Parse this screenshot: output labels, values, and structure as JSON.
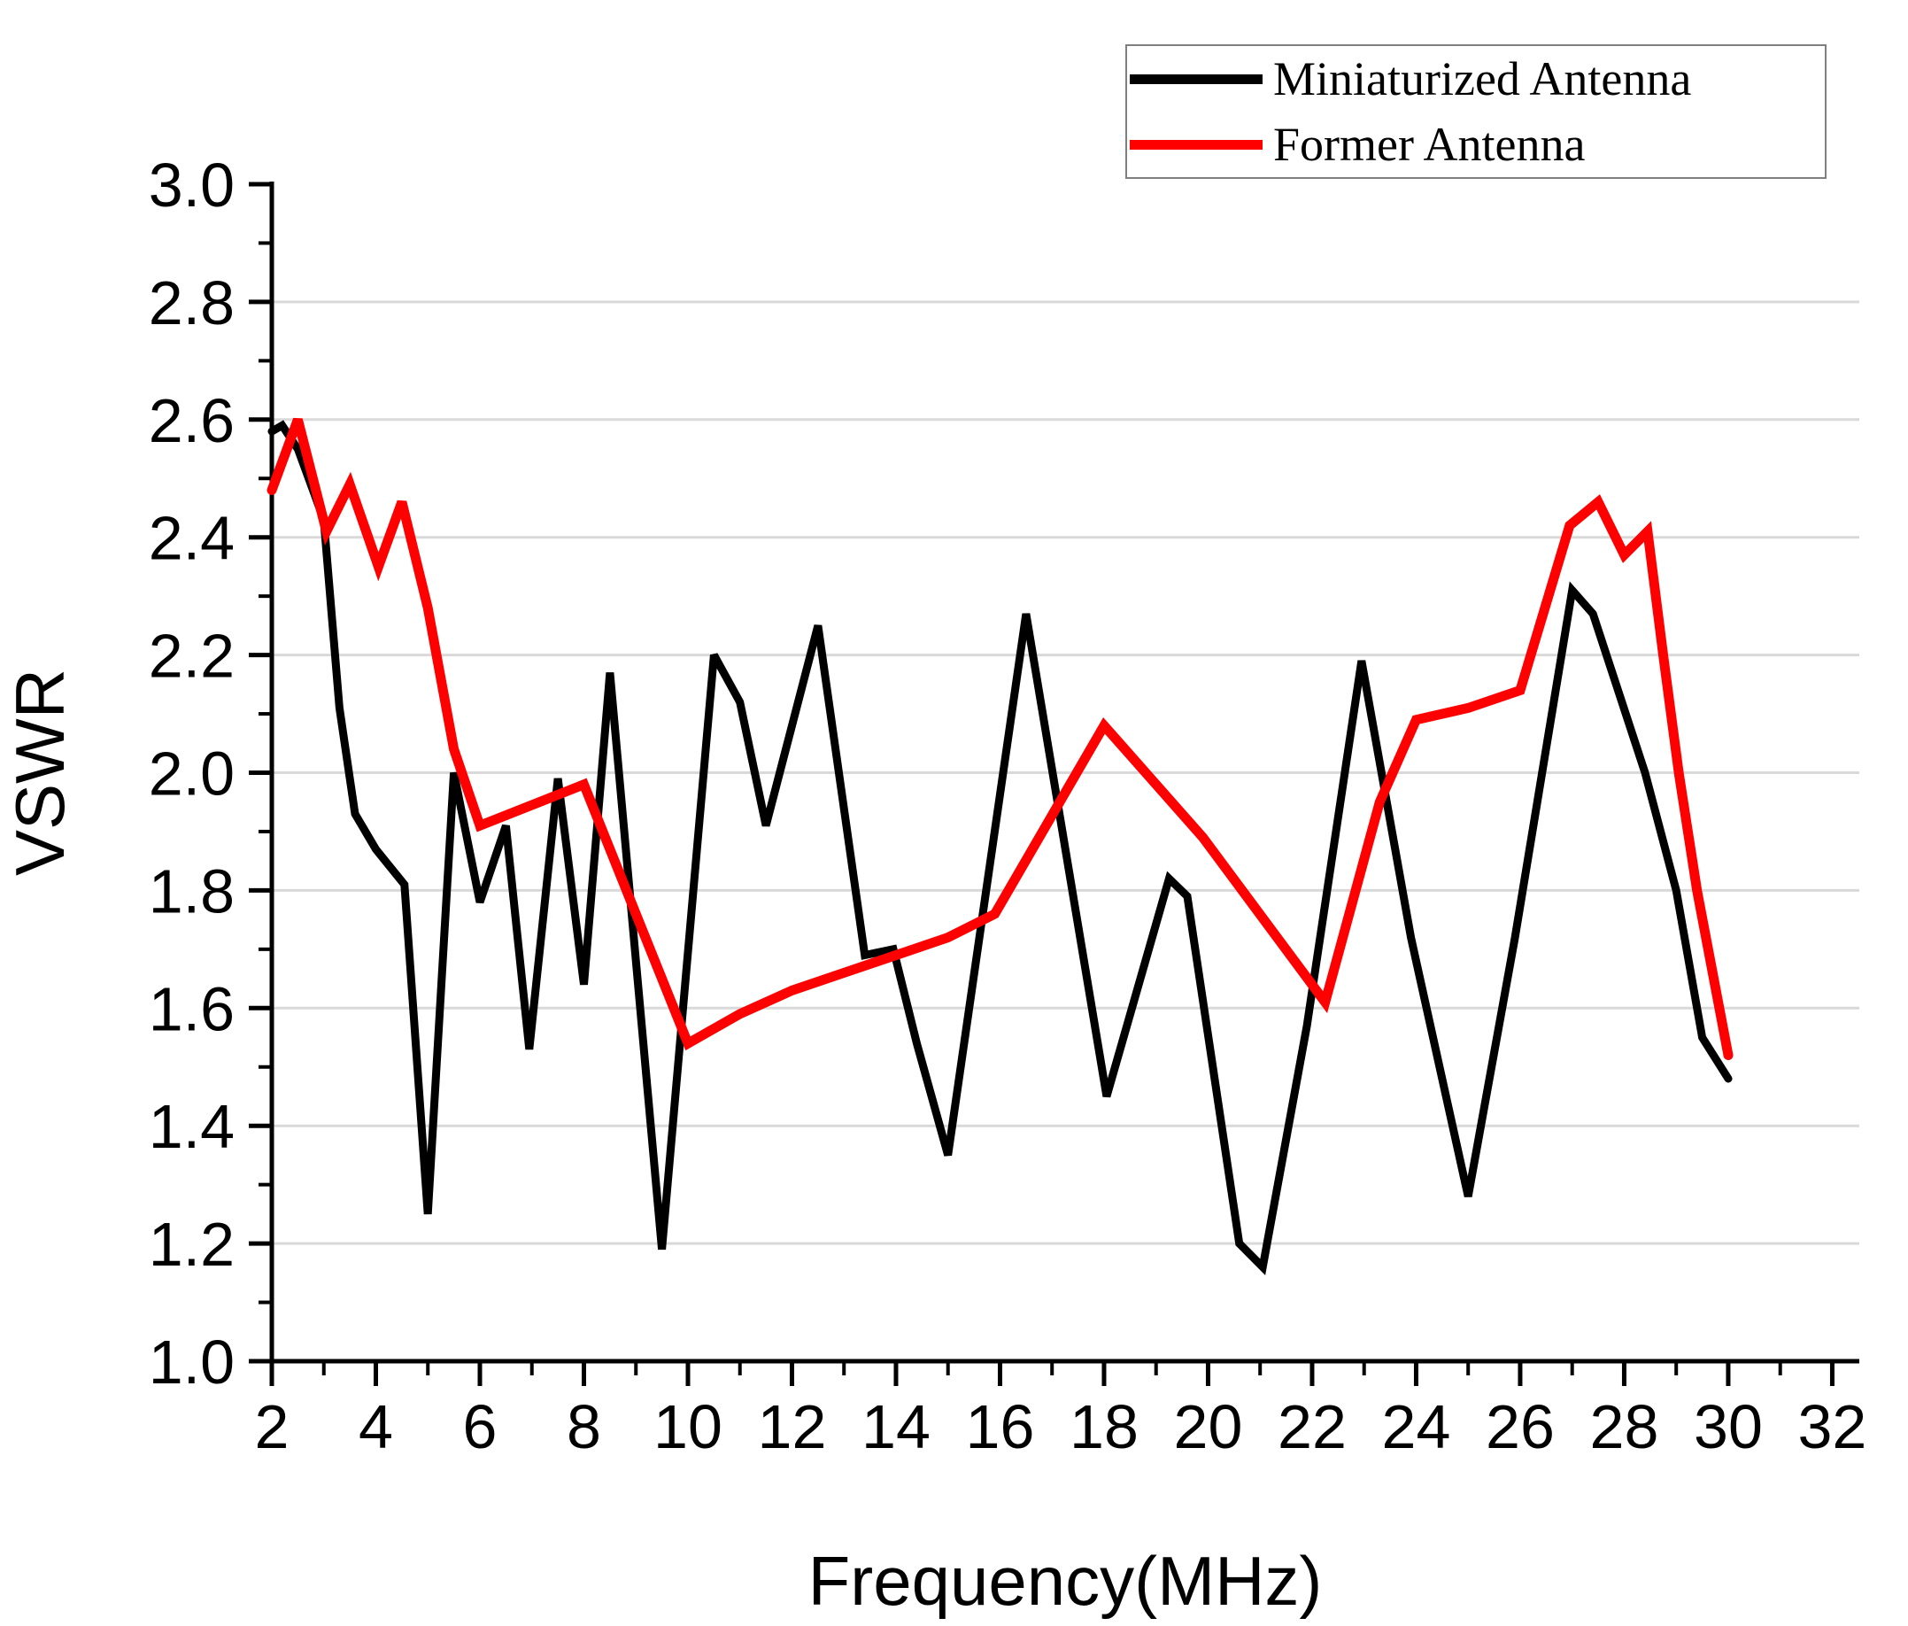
{
  "chart_data": {
    "type": "line",
    "xlabel": "Frequency(MHz)",
    "ylabel": "VSWR",
    "xlim": [
      2,
      32.52
    ],
    "ylim": [
      1.0,
      3.0
    ],
    "grid": "horizontal-only",
    "x_ticks": [
      2,
      4,
      6,
      8,
      10,
      12,
      14,
      16,
      18,
      20,
      22,
      24,
      26,
      28,
      30,
      32
    ],
    "x_minor_ticks": [
      3,
      5,
      7,
      9,
      11,
      13,
      15,
      17,
      19,
      21,
      23,
      25,
      27,
      29,
      31
    ],
    "y_ticks": [
      "1.0",
      "1.2",
      "1.4",
      "1.6",
      "1.8",
      "2.0",
      "2.2",
      "2.4",
      "2.6",
      "2.8",
      "3.0"
    ],
    "y_minor_ticks": [
      1.1,
      1.3,
      1.5,
      1.7,
      1.9,
      2.1,
      2.3,
      2.5,
      2.7,
      2.9
    ],
    "y_gridlines": [
      1.2,
      1.4,
      1.6,
      1.8,
      2.0,
      2.2,
      2.4,
      2.6,
      2.8
    ],
    "legend_position": "top-right",
    "series": [
      {
        "name": "Miniaturized Antenna",
        "color": "#000000",
        "stroke_width": 9,
        "points": [
          [
            2.0,
            2.58
          ],
          [
            2.2,
            2.59
          ],
          [
            2.5,
            2.55
          ],
          [
            3.0,
            2.43
          ],
          [
            3.3,
            2.11
          ],
          [
            3.6,
            1.93
          ],
          [
            4.0,
            1.87
          ],
          [
            4.55,
            1.81
          ],
          [
            5.0,
            1.25
          ],
          [
            5.5,
            2.0
          ],
          [
            6.0,
            1.78
          ],
          [
            6.5,
            1.91
          ],
          [
            6.95,
            1.53
          ],
          [
            7.5,
            1.99
          ],
          [
            8.0,
            1.64
          ],
          [
            8.5,
            2.17
          ],
          [
            9.5,
            1.19
          ],
          [
            10.5,
            2.2
          ],
          [
            11.0,
            2.12
          ],
          [
            11.5,
            1.91
          ],
          [
            12.5,
            2.25
          ],
          [
            13.4,
            1.69
          ],
          [
            13.95,
            1.7
          ],
          [
            14.4,
            1.54
          ],
          [
            15.0,
            1.35
          ],
          [
            16.5,
            2.27
          ],
          [
            18.05,
            1.45
          ],
          [
            19.25,
            1.82
          ],
          [
            19.6,
            1.79
          ],
          [
            20.6,
            1.2
          ],
          [
            21.05,
            1.16
          ],
          [
            21.9,
            1.57
          ],
          [
            22.95,
            2.19
          ],
          [
            23.9,
            1.72
          ],
          [
            25.0,
            1.28
          ],
          [
            25.9,
            1.72
          ],
          [
            27.0,
            2.31
          ],
          [
            27.4,
            2.27
          ],
          [
            28.4,
            2.0
          ],
          [
            29.0,
            1.8
          ],
          [
            29.5,
            1.55
          ],
          [
            30.0,
            1.48
          ]
        ]
      },
      {
        "name": "Former Antenna",
        "color": "#ff0000",
        "stroke_width": 11,
        "points": [
          [
            2.0,
            2.48
          ],
          [
            2.5,
            2.6
          ],
          [
            3.05,
            2.41
          ],
          [
            3.5,
            2.49
          ],
          [
            4.05,
            2.35
          ],
          [
            4.5,
            2.46
          ],
          [
            5.0,
            2.28
          ],
          [
            5.5,
            2.04
          ],
          [
            6.0,
            1.91
          ],
          [
            8.0,
            1.98
          ],
          [
            10.0,
            1.54
          ],
          [
            11.0,
            1.59
          ],
          [
            12.0,
            1.63
          ],
          [
            13.0,
            1.66
          ],
          [
            14.0,
            1.69
          ],
          [
            15.0,
            1.72
          ],
          [
            15.9,
            1.76
          ],
          [
            18.0,
            2.08
          ],
          [
            19.9,
            1.89
          ],
          [
            22.25,
            1.61
          ],
          [
            23.3,
            1.95
          ],
          [
            24.0,
            2.09
          ],
          [
            25.0,
            2.11
          ],
          [
            26.0,
            2.14
          ],
          [
            26.95,
            2.42
          ],
          [
            27.5,
            2.46
          ],
          [
            28.0,
            2.37
          ],
          [
            28.45,
            2.41
          ],
          [
            28.75,
            2.2
          ],
          [
            29.05,
            2.0
          ],
          [
            29.4,
            1.8
          ],
          [
            30.0,
            1.52
          ]
        ]
      }
    ]
  },
  "legend": {
    "items": [
      {
        "label": "Miniaturized Antenna",
        "color": "#000000"
      },
      {
        "label": "Former Antenna",
        "color": "#ff0000"
      }
    ]
  },
  "axes": {
    "x_title": "Frequency(MHz)",
    "y_title": "VSWR"
  },
  "colors": {
    "axis": "#000000",
    "gridline": "#d9d9d9",
    "background": "#ffffff",
    "legend_border": "#7f7f7f"
  }
}
